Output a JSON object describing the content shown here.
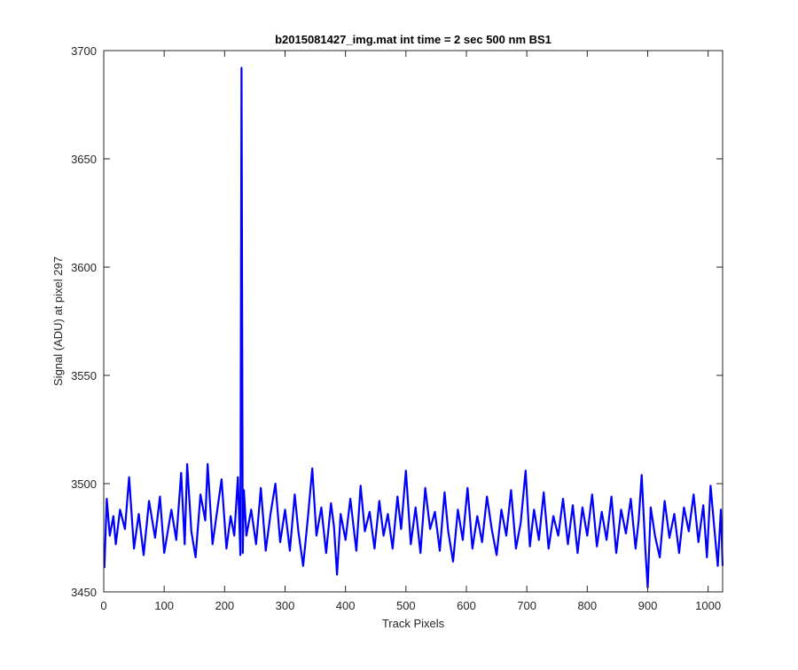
{
  "chart_data": {
    "type": "line",
    "title": "b2015081427_img.mat int time = 2 sec  500 nm BS1",
    "xlabel": "Track Pixels",
    "ylabel": "Signal (ADU) at pixel 297",
    "xlim": [
      0,
      1024
    ],
    "ylim": [
      3450,
      3700
    ],
    "xticks": [
      0,
      100,
      200,
      300,
      400,
      500,
      600,
      700,
      800,
      900,
      1000
    ],
    "yticks": [
      3450,
      3500,
      3550,
      3600,
      3650,
      3700
    ],
    "grid": false,
    "series": [
      {
        "color": "#0000ff",
        "points_x": [
          1,
          5,
          10,
          16,
          20,
          27,
          35,
          42,
          50,
          58,
          66,
          75,
          85,
          93,
          100,
          112,
          120,
          128,
          134,
          138,
          145,
          152,
          160,
          168,
          172,
          180,
          188,
          195,
          203,
          210,
          216,
          222,
          226,
          228,
          230,
          232,
          236,
          244,
          252,
          260,
          268,
          276,
          284,
          292,
          300,
          308,
          316,
          322,
          330,
          338,
          345,
          352,
          360,
          368,
          376,
          381,
          386,
          392,
          400,
          408,
          418,
          425,
          432,
          440,
          448,
          456,
          463,
          470,
          478,
          486,
          492,
          500,
          508,
          516,
          524,
          532,
          540,
          548,
          556,
          564,
          570,
          578,
          586,
          594,
          602,
          610,
          618,
          626,
          634,
          642,
          650,
          658,
          666,
          674,
          682,
          690,
          698,
          705,
          712,
          720,
          728,
          736,
          744,
          752,
          760,
          768,
          776,
          784,
          792,
          800,
          808,
          816,
          824,
          832,
          840,
          848,
          856,
          864,
          872,
          880,
          885,
          890,
          896,
          900,
          905,
          912,
          920,
          928,
          936,
          944,
          952,
          960,
          968,
          976,
          984,
          992,
          998,
          1004,
          1010,
          1016,
          1021,
          1024
        ],
        "points_y": [
          3461,
          3493,
          3476,
          3485,
          3472,
          3488,
          3479,
          3503,
          3470,
          3486,
          3467,
          3492,
          3475,
          3494,
          3468,
          3488,
          3474,
          3505,
          3472,
          3509,
          3478,
          3466,
          3495,
          3483,
          3509,
          3472,
          3488,
          3502,
          3470,
          3485,
          3476,
          3503,
          3467,
          3692,
          3468,
          3497,
          3476,
          3488,
          3472,
          3498,
          3469,
          3486,
          3500,
          3473,
          3488,
          3469,
          3495,
          3478,
          3462,
          3485,
          3507,
          3476,
          3489,
          3468,
          3491,
          3480,
          3458,
          3486,
          3474,
          3493,
          3469,
          3499,
          3478,
          3487,
          3470,
          3492,
          3476,
          3486,
          3470,
          3494,
          3479,
          3506,
          3472,
          3489,
          3468,
          3498,
          3479,
          3487,
          3469,
          3496,
          3478,
          3464,
          3488,
          3474,
          3498,
          3470,
          3485,
          3473,
          3494,
          3479,
          3467,
          3488,
          3476,
          3497,
          3470,
          3482,
          3506,
          3471,
          3488,
          3474,
          3496,
          3470,
          3485,
          3476,
          3493,
          3472,
          3490,
          3468,
          3489,
          3476,
          3495,
          3471,
          3487,
          3474,
          3494,
          3468,
          3488,
          3477,
          3493,
          3470,
          3483,
          3504,
          3470,
          3452,
          3489,
          3476,
          3466,
          3492,
          3475,
          3486,
          3468,
          3489,
          3478,
          3495,
          3473,
          3490,
          3466,
          3499,
          3480,
          3462,
          3488,
          3462
        ]
      }
    ]
  }
}
